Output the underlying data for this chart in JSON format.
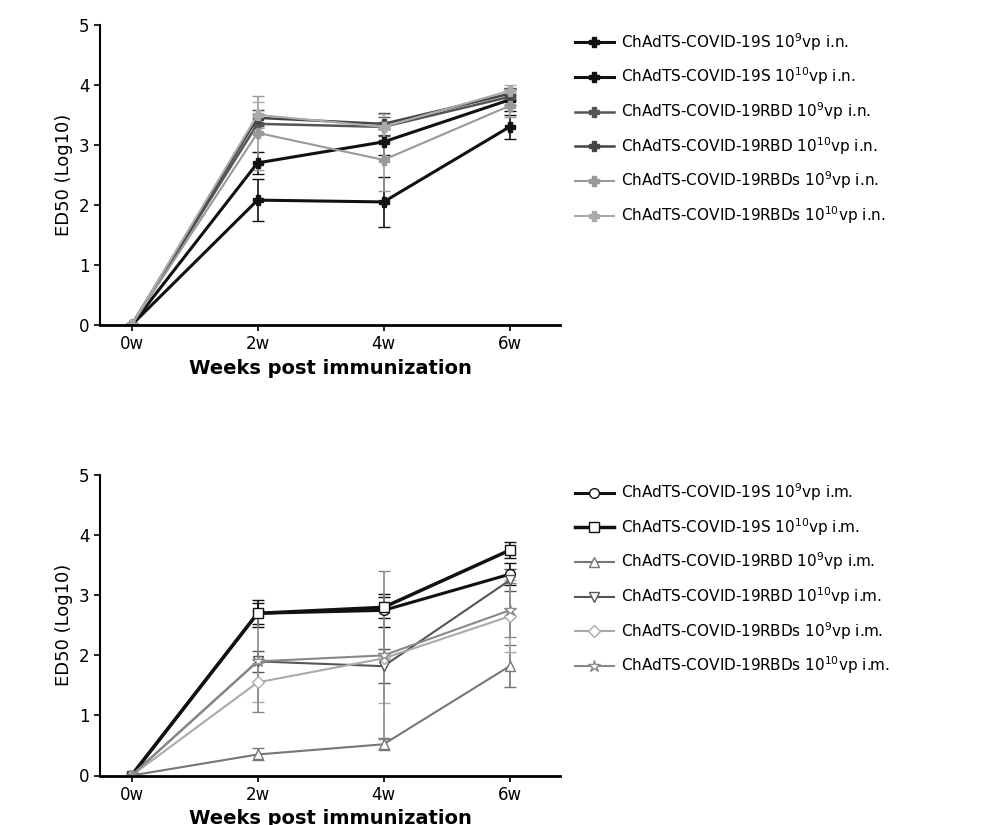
{
  "xvals": [
    0,
    1,
    2,
    3
  ],
  "xtick_labels": [
    "0w",
    "2w",
    "4w",
    "6w"
  ],
  "ylim": [
    0,
    5
  ],
  "yticks": [
    0,
    1,
    2,
    3,
    4,
    5
  ],
  "ylabel": "ED50 (Log10)",
  "xlabel": "Weeks post immunization",
  "top_series": [
    {
      "label_base": "ChAdTS-COVID-19S",
      "label_dose": "10",
      "label_exp": "9",
      "label_suffix": "vp i.n.",
      "color": "#111111",
      "marker": "P",
      "markersize": 7,
      "markerfacecolor": "#111111",
      "linewidth": 2.2,
      "y": [
        0.0,
        2.08,
        2.05,
        3.3
      ],
      "yerr": [
        0.0,
        0.35,
        0.42,
        0.2
      ]
    },
    {
      "label_base": "ChAdTS-COVID-19S",
      "label_dose": "10",
      "label_exp": "10",
      "label_suffix": "vp i.n.",
      "color": "#111111",
      "marker": "P",
      "markersize": 7,
      "markerfacecolor": "#111111",
      "linewidth": 2.2,
      "y": [
        0.0,
        2.7,
        3.05,
        3.75
      ],
      "yerr": [
        0.0,
        0.18,
        0.22,
        0.18
      ]
    },
    {
      "label_base": "ChAdTS-COVID-19RBD",
      "label_dose": "10",
      "label_exp": "9",
      "label_suffix": "vp i.n.",
      "color": "#555555",
      "marker": "P",
      "markersize": 7,
      "markerfacecolor": "#555555",
      "linewidth": 1.8,
      "y": [
        0.0,
        3.35,
        3.3,
        3.8
      ],
      "yerr": [
        0.0,
        0.16,
        0.16,
        0.13
      ]
    },
    {
      "label_base": "ChAdTS-COVID-19RBD",
      "label_dose": "10",
      "label_exp": "10",
      "label_suffix": "vp i.n.",
      "color": "#444444",
      "marker": "P",
      "markersize": 7,
      "markerfacecolor": "#444444",
      "linewidth": 1.8,
      "y": [
        0.0,
        3.45,
        3.35,
        3.85
      ],
      "yerr": [
        0.0,
        0.13,
        0.18,
        0.1
      ]
    },
    {
      "label_base": "ChAdTS-COVID-19RBDs",
      "label_dose": "10",
      "label_exp": "9",
      "label_suffix": "vp i.n.",
      "color": "#999999",
      "marker": "P",
      "markersize": 7,
      "markerfacecolor": "#999999",
      "linewidth": 1.5,
      "y": [
        0.0,
        3.2,
        2.75,
        3.65
      ],
      "yerr": [
        0.0,
        0.62,
        0.52,
        0.18
      ]
    },
    {
      "label_base": "ChAdTS-COVID-19RBDs",
      "label_dose": "10",
      "label_exp": "10",
      "label_suffix": "vp i.n.",
      "color": "#aaaaaa",
      "marker": "P",
      "markersize": 7,
      "markerfacecolor": "#aaaaaa",
      "linewidth": 1.5,
      "y": [
        0.0,
        3.5,
        3.3,
        3.9
      ],
      "yerr": [
        0.0,
        0.22,
        0.22,
        0.1
      ]
    }
  ],
  "bottom_series": [
    {
      "label_base": "ChAdTS-COVID-19S",
      "label_dose": "10",
      "label_exp": "9",
      "label_suffix": "vp i.m.",
      "color": "#111111",
      "marker": "o",
      "markersize": 7,
      "markerfacecolor": "white",
      "linewidth": 2.2,
      "y": [
        0.0,
        2.7,
        2.75,
        3.35
      ],
      "yerr": [
        0.0,
        0.22,
        0.28,
        0.18
      ]
    },
    {
      "label_base": "ChAdTS-COVID-19S",
      "label_dose": "10",
      "label_exp": "10",
      "label_suffix": "vp i.m.",
      "color": "#111111",
      "marker": "s",
      "markersize": 7,
      "markerfacecolor": "white",
      "linewidth": 2.5,
      "y": [
        0.0,
        2.7,
        2.8,
        3.75
      ],
      "yerr": [
        0.0,
        0.18,
        0.18,
        0.13
      ]
    },
    {
      "label_base": "ChAdTS-COVID-19RBD",
      "label_dose": "10",
      "label_exp": "9",
      "label_suffix": "vp i.m.",
      "color": "#777777",
      "marker": "^",
      "markersize": 7,
      "markerfacecolor": "white",
      "linewidth": 1.5,
      "y": [
        0.0,
        0.35,
        0.52,
        1.82
      ],
      "yerr": [
        0.0,
        0.1,
        0.1,
        0.35
      ]
    },
    {
      "label_base": "ChAdTS-COVID-19RBD",
      "label_dose": "10",
      "label_exp": "10",
      "label_suffix": "vp i.m.",
      "color": "#555555",
      "marker": "v",
      "markersize": 7,
      "markerfacecolor": "white",
      "linewidth": 1.5,
      "y": [
        0.0,
        1.9,
        1.82,
        3.25
      ],
      "yerr": [
        0.0,
        0.18,
        0.28,
        0.18
      ]
    },
    {
      "label_base": "ChAdTS-COVID-19RBDs",
      "label_dose": "10",
      "label_exp": "9",
      "label_suffix": "vp i.m.",
      "color": "#aaaaaa",
      "marker": "D",
      "markersize": 6,
      "markerfacecolor": "white",
      "linewidth": 1.5,
      "y": [
        0.0,
        1.55,
        1.95,
        2.65
      ],
      "yerr": [
        0.0,
        0.32,
        0.75,
        0.6
      ]
    },
    {
      "label_base": "ChAdTS-COVID-19RBDs",
      "label_dose": "10",
      "label_exp": "10",
      "label_suffix": "vp i.m.",
      "color": "#888888",
      "marker": "*",
      "markersize": 9,
      "markerfacecolor": "white",
      "linewidth": 1.5,
      "y": [
        0.0,
        1.9,
        2.0,
        2.75
      ],
      "yerr": [
        0.0,
        0.85,
        1.4,
        0.45
      ]
    }
  ]
}
